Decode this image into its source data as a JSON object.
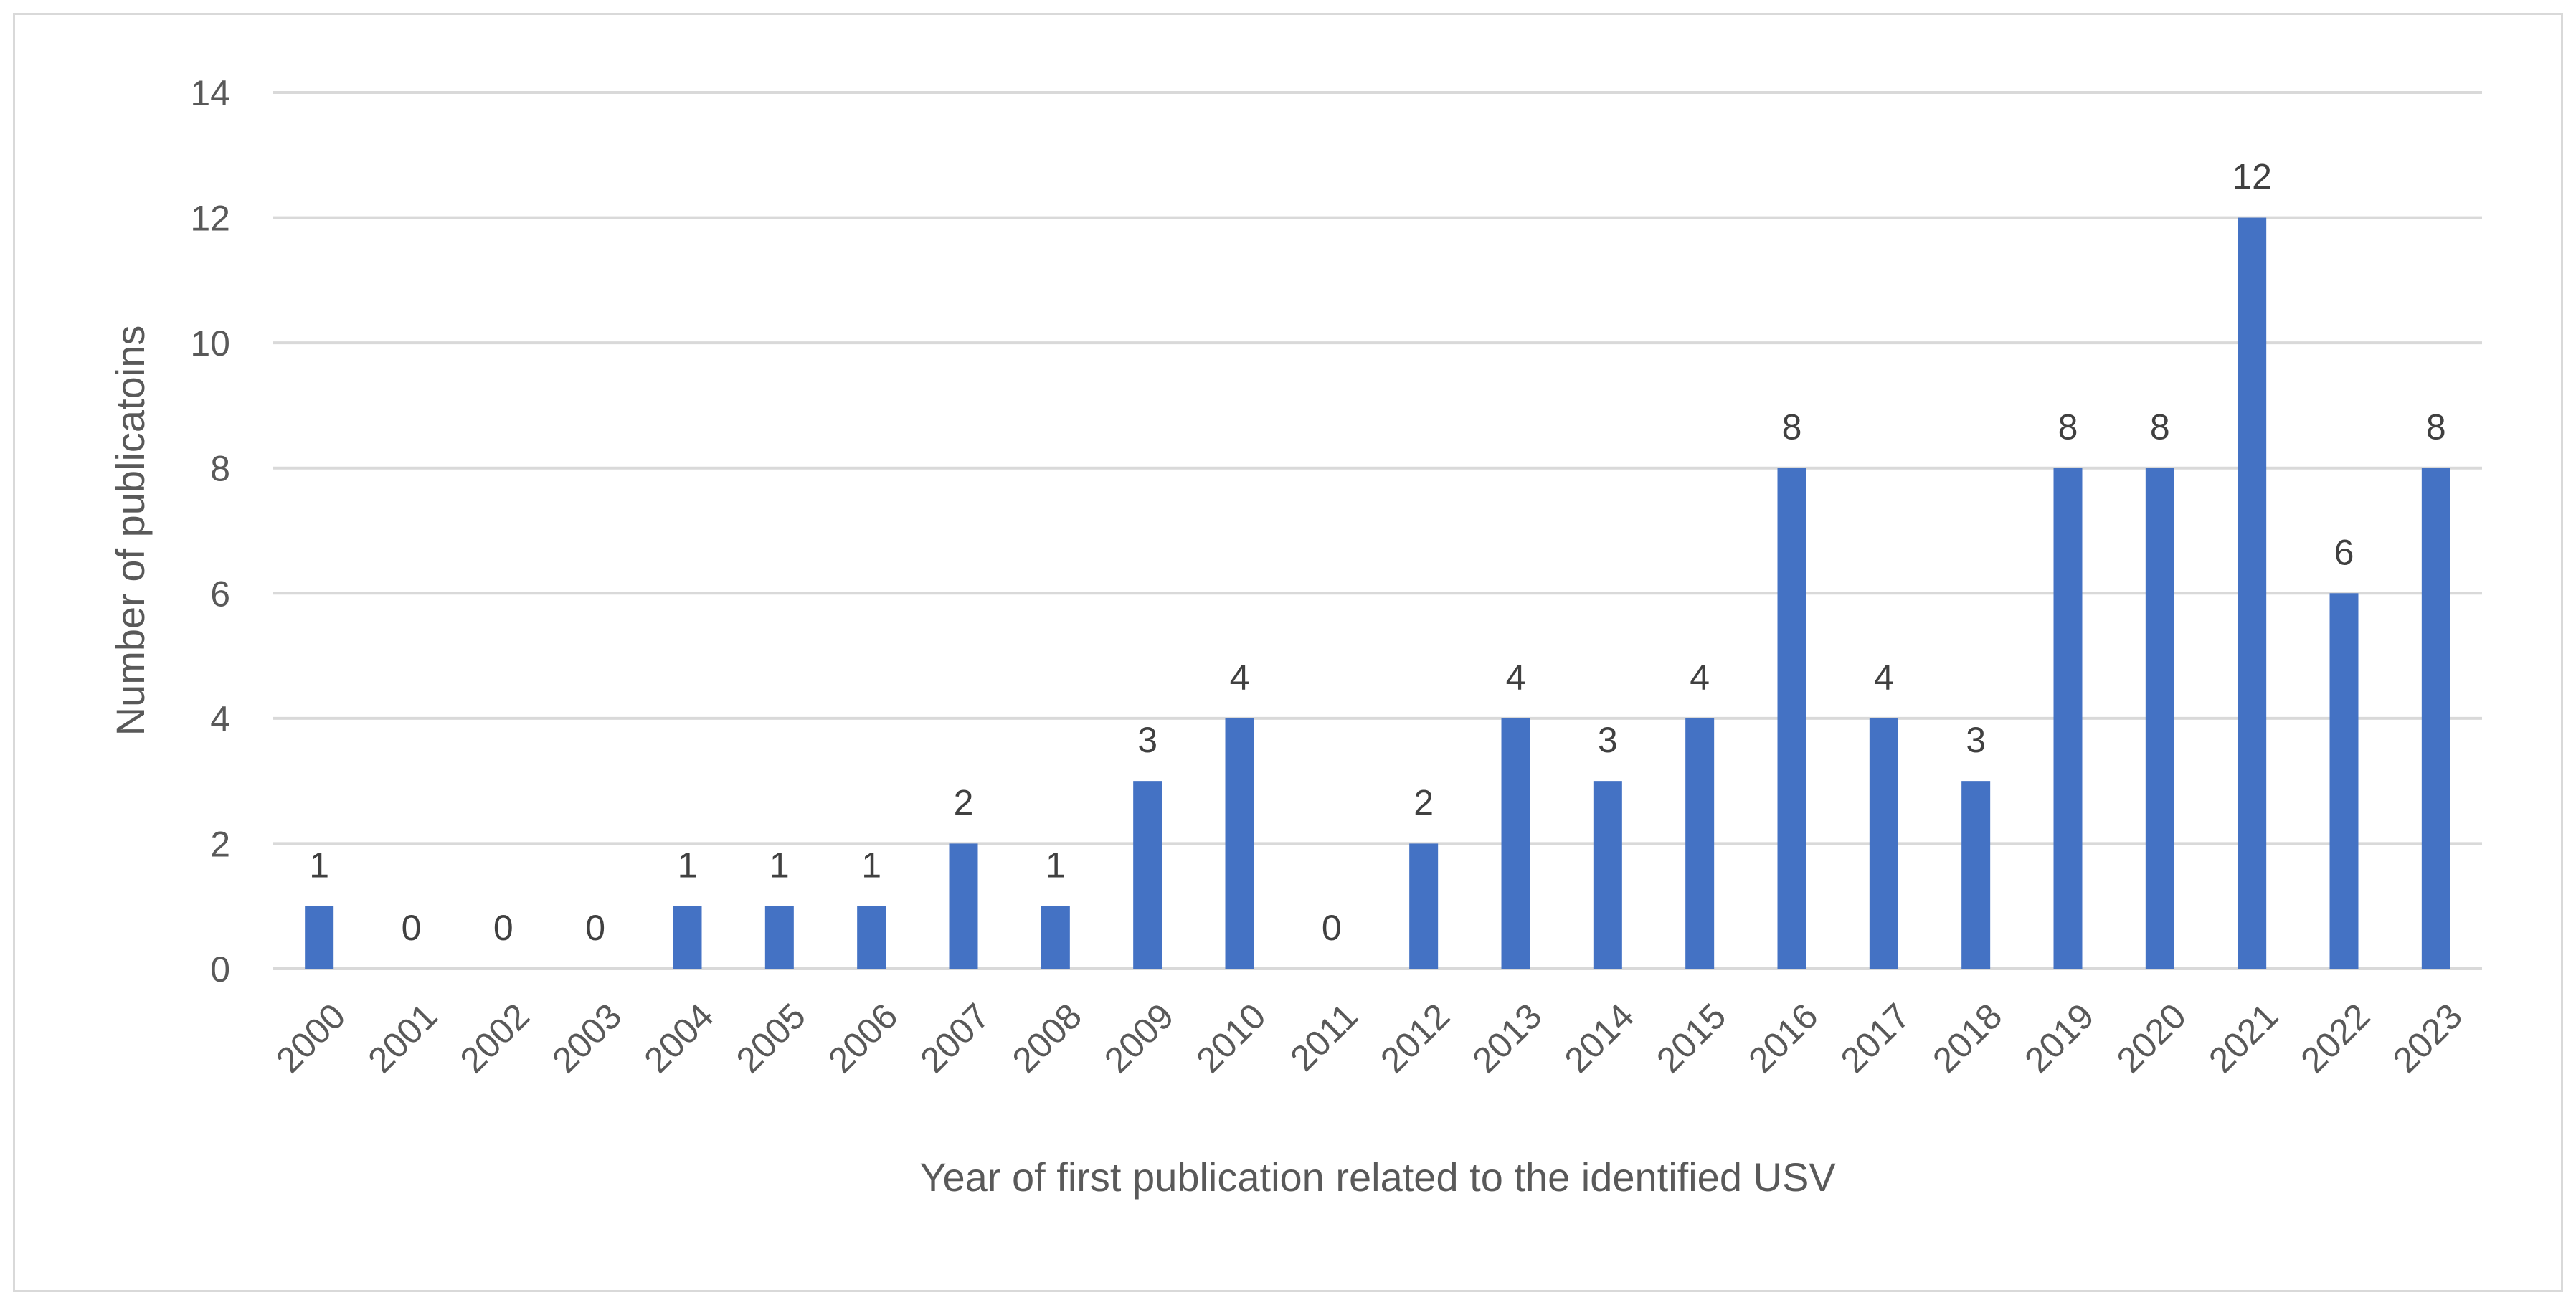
{
  "chart_data": {
    "type": "bar",
    "title": "",
    "xlabel": "Year of first publication related to the identified USV",
    "ylabel": "Number of publicatoins",
    "categories": [
      "2000",
      "2001",
      "2002",
      "2003",
      "2004",
      "2005",
      "2006",
      "2007",
      "2008",
      "2009",
      "2010",
      "2011",
      "2012",
      "2013",
      "2014",
      "2015",
      "2016",
      "2017",
      "2018",
      "2019",
      "2020",
      "2021",
      "2022",
      "2023"
    ],
    "series": [
      {
        "values": [
          1,
          0,
          0,
          0,
          1,
          1,
          1,
          2,
          1,
          3,
          4,
          0,
          2,
          4,
          3,
          4,
          8,
          4,
          3,
          8,
          8,
          12,
          6,
          8
        ]
      }
    ],
    "ylim": [
      0,
      14
    ],
    "yticks": [
      0,
      2,
      4,
      6,
      8,
      10,
      12,
      14
    ],
    "grid": true,
    "legend": "none",
    "data_labels": true,
    "bar_color": "#4472c4",
    "grid_color": "#d9d9d9",
    "text_color": "#595959"
  }
}
